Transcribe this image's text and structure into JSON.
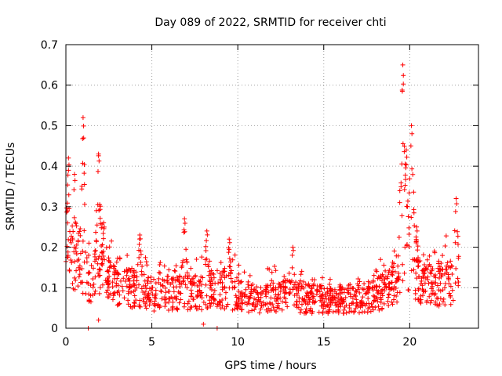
{
  "chart_data": {
    "type": "scatter",
    "title": "Day 089 of 2022, SRMTID for receiver chti",
    "xlabel": "GPS time / hours",
    "ylabel": "SRMTID / TECUs",
    "xlim": [
      0,
      24
    ],
    "ylim": [
      0,
      0.7
    ],
    "x_ticks": [
      0,
      5,
      10,
      15,
      20
    ],
    "x_tick_labels": [
      "0",
      "5",
      "10",
      "15",
      "20"
    ],
    "y_ticks": [
      0,
      0.1,
      0.2,
      0.3,
      0.4,
      0.5,
      0.6,
      0.7
    ],
    "y_tick_labels": [
      "0",
      "0.1",
      "0.2",
      "0.3",
      "0.4",
      "0.5",
      "0.6",
      "0.7"
    ],
    "grid": true,
    "marker": "+",
    "series": [
      {
        "name": "SRMTID",
        "color": "#ff0000",
        "data_range_hours": [
          0,
          22.9
        ],
        "baseline_profile": [
          [
            0.0,
            0.19
          ],
          [
            0.5,
            0.2
          ],
          [
            1.0,
            0.16
          ],
          [
            1.5,
            0.14
          ],
          [
            2.0,
            0.15
          ],
          [
            3.0,
            0.11
          ],
          [
            4.0,
            0.11
          ],
          [
            5.0,
            0.09
          ],
          [
            6.0,
            0.09
          ],
          [
            7.0,
            0.1
          ],
          [
            8.0,
            0.1
          ],
          [
            9.0,
            0.11
          ],
          [
            10.0,
            0.09
          ],
          [
            11.0,
            0.08
          ],
          [
            12.0,
            0.09
          ],
          [
            13.0,
            0.09
          ],
          [
            14.0,
            0.08
          ],
          [
            15.0,
            0.08
          ],
          [
            16.0,
            0.08
          ],
          [
            17.0,
            0.08
          ],
          [
            18.0,
            0.09
          ],
          [
            19.0,
            0.11
          ],
          [
            19.5,
            0.17
          ],
          [
            20.0,
            0.15
          ],
          [
            20.5,
            0.13
          ],
          [
            21.0,
            0.12
          ],
          [
            22.0,
            0.12
          ],
          [
            22.9,
            0.14
          ]
        ],
        "peaks": [
          {
            "x": 0.15,
            "y": 0.42
          },
          {
            "x": 0.5,
            "y": 0.38
          },
          {
            "x": 1.0,
            "y": 0.52
          },
          {
            "x": 1.9,
            "y": 0.43
          },
          {
            "x": 2.2,
            "y": 0.26
          },
          {
            "x": 4.3,
            "y": 0.23
          },
          {
            "x": 6.9,
            "y": 0.27
          },
          {
            "x": 8.2,
            "y": 0.24
          },
          {
            "x": 9.5,
            "y": 0.22
          },
          {
            "x": 13.2,
            "y": 0.2
          },
          {
            "x": 19.6,
            "y": 0.65
          },
          {
            "x": 19.8,
            "y": 0.44
          },
          {
            "x": 20.1,
            "y": 0.5
          },
          {
            "x": 20.4,
            "y": 0.25
          },
          {
            "x": 22.7,
            "y": 0.32
          }
        ],
        "minimum_outliers": [
          {
            "x": 1.3,
            "y": 0.0
          },
          {
            "x": 1.9,
            "y": 0.02
          },
          {
            "x": 8.0,
            "y": 0.01
          },
          {
            "x": 8.8,
            "y": 0.0
          }
        ]
      }
    ]
  }
}
